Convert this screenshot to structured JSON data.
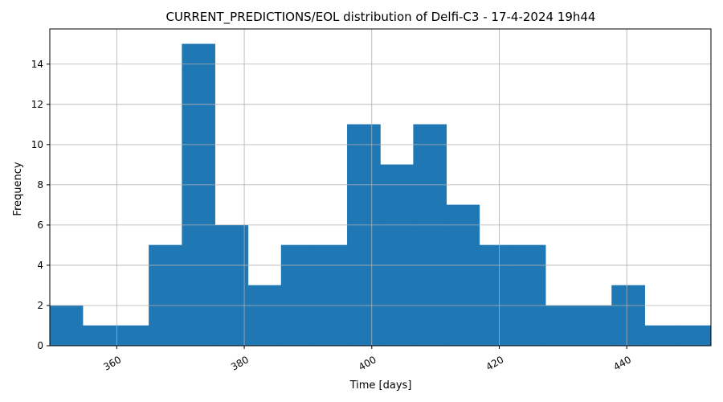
{
  "chart_data": {
    "type": "bar",
    "title": "CURRENT_PREDICTIONS/EOL distribution of Delfi-C3 - 17-4-2024 19h44",
    "xlabel": "Time [days]",
    "ylabel": "Frequency",
    "xlim": [
      349.5,
      453.2
    ],
    "ylim": [
      0,
      15.75
    ],
    "x_ticks": [
      360,
      380,
      400,
      420,
      440
    ],
    "y_ticks": [
      0,
      2,
      4,
      6,
      8,
      10,
      12,
      14
    ],
    "grid": true,
    "bar_color": "#1f77b4",
    "bins": [
      {
        "start": 349.5,
        "end": 354.68,
        "count": 2
      },
      {
        "start": 354.68,
        "end": 359.87,
        "count": 1
      },
      {
        "start": 359.87,
        "end": 365.05,
        "count": 1
      },
      {
        "start": 365.05,
        "end": 370.24,
        "count": 5
      },
      {
        "start": 370.24,
        "end": 375.42,
        "count": 15
      },
      {
        "start": 375.42,
        "end": 380.61,
        "count": 6
      },
      {
        "start": 380.61,
        "end": 385.79,
        "count": 3
      },
      {
        "start": 385.79,
        "end": 390.98,
        "count": 5
      },
      {
        "start": 390.98,
        "end": 396.16,
        "count": 5
      },
      {
        "start": 396.16,
        "end": 401.35,
        "count": 11
      },
      {
        "start": 401.35,
        "end": 406.53,
        "count": 9
      },
      {
        "start": 406.53,
        "end": 411.72,
        "count": 11
      },
      {
        "start": 411.72,
        "end": 416.9,
        "count": 7
      },
      {
        "start": 416.9,
        "end": 422.09,
        "count": 5
      },
      {
        "start": 422.09,
        "end": 427.27,
        "count": 5
      },
      {
        "start": 427.27,
        "end": 432.46,
        "count": 2
      },
      {
        "start": 432.46,
        "end": 437.64,
        "count": 2
      },
      {
        "start": 437.64,
        "end": 442.83,
        "count": 3
      },
      {
        "start": 442.83,
        "end": 448.01,
        "count": 1
      },
      {
        "start": 448.01,
        "end": 453.2,
        "count": 1
      }
    ]
  }
}
